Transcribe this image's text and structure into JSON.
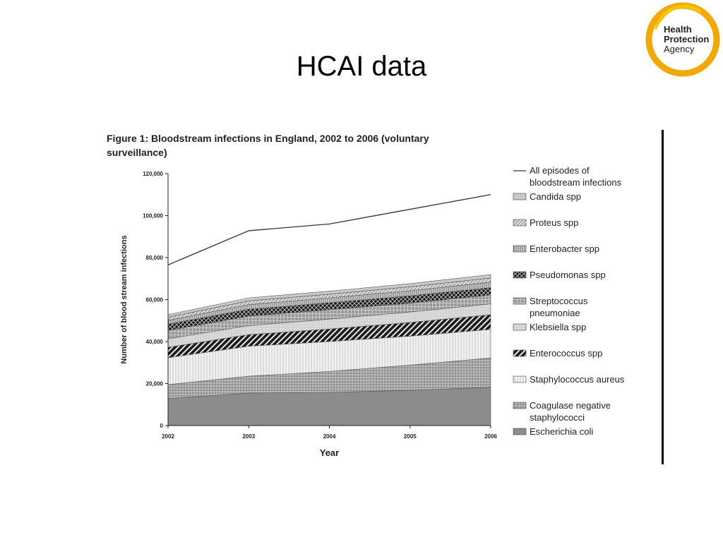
{
  "slide": {
    "title": "HCAI data"
  },
  "logo": {
    "text_line1": "Health",
    "text_line2": "Protection",
    "text_line3": "Agency",
    "ring_color": "#f5a800",
    "accent_color": "#f08a00"
  },
  "figure": {
    "caption_line1": "Figure 1:  Bloodstream infections in England, 2002 to 2006 (voluntary",
    "caption_line2": "surveillance)"
  },
  "chart_data": {
    "type": "area",
    "stacked": true,
    "x": [
      "2002",
      "2003",
      "2004",
      "2005",
      "2006"
    ],
    "xlabel": "Year",
    "ylabel": "Number of blood stream infections",
    "ylim": [
      0,
      120000
    ],
    "yticks": [
      0,
      20000,
      40000,
      60000,
      80000,
      100000,
      120000
    ],
    "ytick_labels": [
      "0",
      "20,000",
      "40,000",
      "60,000",
      "80,000",
      "100,000",
      "120,000"
    ],
    "grid": false,
    "legend_position": "right",
    "series": [
      {
        "name": "Escherichia coli",
        "values": [
          12800,
          15500,
          15800,
          16800,
          18200
        ],
        "fill": "#8c8c8c",
        "pattern": "solid"
      },
      {
        "name": "Coagulase negative staphylococci",
        "values": [
          6700,
          8000,
          10000,
          12000,
          14000
        ],
        "fill": "#aaaaaa",
        "pattern": "dots"
      },
      {
        "name": "Staphylococcus aureus",
        "values": [
          12800,
          14300,
          14200,
          13800,
          13600
        ],
        "fill": "#ededed",
        "pattern": "vlines"
      },
      {
        "name": "Enterococcus spp",
        "values": [
          5000,
          5500,
          6000,
          6500,
          7000
        ],
        "fill": "#2b2b2b",
        "pattern": "diag-dark"
      },
      {
        "name": "Klebsiella spp",
        "values": [
          4000,
          4300,
          4700,
          5000,
          5200
        ],
        "fill": "#cfcfcf",
        "pattern": "dots-light"
      },
      {
        "name": "Streptococcus pneumoniae",
        "values": [
          4000,
          4500,
          4500,
          4200,
          4200
        ],
        "fill": "#9a9a9a",
        "pattern": "grid"
      },
      {
        "name": "Pseudomonas spp",
        "values": [
          3000,
          3300,
          3300,
          3500,
          3500
        ],
        "fill": "#1e1e1e",
        "pattern": "crosshatch-dark"
      },
      {
        "name": "Enterobacter spp",
        "values": [
          1800,
          2200,
          2300,
          2400,
          2600
        ],
        "fill": "#b5b5b5",
        "pattern": "vlines-dense"
      },
      {
        "name": "Proteus spp",
        "values": [
          1500,
          1800,
          1800,
          1900,
          2000
        ],
        "fill": "#cfcfcf",
        "pattern": "diag-light"
      },
      {
        "name": "Candida spp",
        "values": [
          1200,
          1400,
          1400,
          1500,
          1600
        ],
        "fill": "#c9c9c9",
        "pattern": "solid"
      }
    ],
    "line_series": {
      "name": "All episodes of bloodstream infections",
      "values": [
        76500,
        92800,
        96000,
        103000,
        110000
      ],
      "color": "#333333"
    },
    "legend_labels": [
      [
        "All episodes of",
        "bloodstream infections"
      ],
      [
        "Candida spp"
      ],
      [
        "Proteus spp"
      ],
      [
        "Enterobacter spp"
      ],
      [
        "Pseudomonas spp"
      ],
      [
        "Streptococcus",
        "pneumoniae"
      ],
      [
        "Klebsiella spp"
      ],
      [
        "Enterococcus spp"
      ],
      [
        "Staphylococcus aureus"
      ],
      [
        "Coagulase negative",
        "staphylococci"
      ],
      [
        "Escherichia coli"
      ]
    ]
  }
}
